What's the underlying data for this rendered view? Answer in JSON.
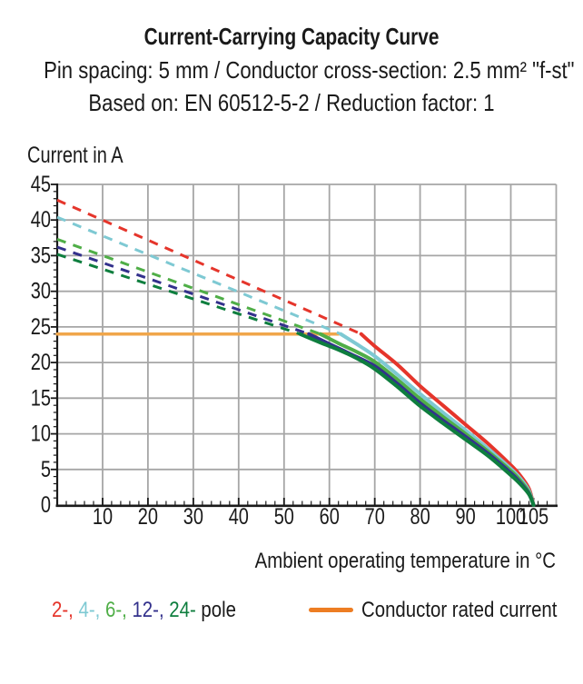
{
  "page": {
    "title": "Current-Carrying Capacity Curve",
    "subtitle1": "Pin spacing: 5 mm / Conductor cross-section: 2.5 mm² \"f-st\"",
    "subtitle2": "Based on: EN 60512-5-2 / Reduction factor: 1"
  },
  "axes": {
    "y_title": "Current in A",
    "x_title": "Ambient operating temperature in °C"
  },
  "legend": {
    "pole_items": [
      {
        "label": "2-,",
        "color": "#E5352B"
      },
      {
        "label": "4-,",
        "color": "#7EC9D3"
      },
      {
        "label": "6-,",
        "color": "#4FAE47"
      },
      {
        "label": "12-,",
        "color": "#33318C"
      },
      {
        "label": "24-",
        "color": "#0E7E3E"
      },
      {
        "label": "pole",
        "color": "#1A1A1A"
      }
    ],
    "rated_label": "Conductor rated current",
    "rated_swatch_color": "#ED7D23"
  },
  "chart_data": {
    "type": "line",
    "title": "Current-Carrying Capacity Curve",
    "xlabel": "Ambient operating temperature in °C",
    "ylabel": "Current in A",
    "xlim": [
      0,
      110
    ],
    "ylim": [
      0,
      45
    ],
    "grid": true,
    "x_gridline_step": 10,
    "y_gridline_step": 5,
    "x_tick_labels": [
      10,
      20,
      30,
      40,
      50,
      60,
      70,
      80,
      90,
      100,
      105
    ],
    "y_tick_labels": [
      0,
      5,
      10,
      15,
      20,
      25,
      30,
      35,
      40,
      45
    ],
    "axis_color": "#1A1A1A",
    "grid_color": "#A6A6A6",
    "rated_current_line": {
      "value": 24,
      "t_start": 0,
      "t_end": 62,
      "color": "#F0A64A",
      "label": "Conductor rated current"
    },
    "series": [
      {
        "name": "2-pole",
        "poles": 2,
        "color": "#E5352B",
        "dashed_points": [
          [
            0,
            42.8
          ],
          [
            67,
            24
          ]
        ],
        "solid_points": [
          [
            67,
            24
          ],
          [
            70,
            22.3
          ],
          [
            75,
            19.7
          ],
          [
            80,
            16.7
          ],
          [
            85,
            14.0
          ],
          [
            90,
            11.3
          ],
          [
            95,
            8.6
          ],
          [
            100,
            5.6
          ],
          [
            102,
            4.2
          ],
          [
            104,
            2.3
          ],
          [
            105,
            0
          ]
        ]
      },
      {
        "name": "4-pole",
        "poles": 4,
        "color": "#7EC9D3",
        "dashed_points": [
          [
            0,
            40.4
          ],
          [
            62.5,
            24
          ]
        ],
        "solid_points": [
          [
            62.5,
            24
          ],
          [
            66,
            22.6
          ],
          [
            70,
            20.9
          ],
          [
            75,
            18.3
          ],
          [
            80,
            15.6
          ],
          [
            85,
            13.0
          ],
          [
            90,
            10.5
          ],
          [
            95,
            7.9
          ],
          [
            100,
            5.1
          ],
          [
            102,
            3.8
          ],
          [
            104,
            2.0
          ],
          [
            105,
            0
          ]
        ]
      },
      {
        "name": "6-pole",
        "poles": 6,
        "color": "#4FAE47",
        "dashed_points": [
          [
            0,
            37.3
          ],
          [
            58,
            24
          ]
        ],
        "solid_points": [
          [
            58,
            24
          ],
          [
            62,
            22.7
          ],
          [
            66,
            21.5
          ],
          [
            70,
            20.1
          ],
          [
            75,
            17.6
          ],
          [
            80,
            14.9
          ],
          [
            85,
            12.4
          ],
          [
            90,
            10.0
          ],
          [
            95,
            7.5
          ],
          [
            100,
            4.8
          ],
          [
            102,
            3.5
          ],
          [
            104,
            1.8
          ],
          [
            105,
            0
          ]
        ]
      },
      {
        "name": "12-pole",
        "poles": 12,
        "color": "#33318C",
        "dashed_points": [
          [
            0,
            36.2
          ],
          [
            55.5,
            24
          ]
        ],
        "solid_points": [
          [
            55.5,
            24
          ],
          [
            60,
            22.6
          ],
          [
            65,
            21.1
          ],
          [
            70,
            19.5
          ],
          [
            75,
            17.0
          ],
          [
            80,
            14.3
          ],
          [
            85,
            11.9
          ],
          [
            90,
            9.6
          ],
          [
            95,
            7.2
          ],
          [
            100,
            4.5
          ],
          [
            102,
            3.2
          ],
          [
            104,
            1.6
          ],
          [
            105,
            0
          ]
        ]
      },
      {
        "name": "24-pole",
        "poles": 24,
        "color": "#0E7E3E",
        "dashed_points": [
          [
            0,
            35.2
          ],
          [
            53.5,
            24
          ]
        ],
        "solid_points": [
          [
            53.5,
            24
          ],
          [
            58,
            22.8
          ],
          [
            62,
            21.8
          ],
          [
            66,
            20.6
          ],
          [
            70,
            19.1
          ],
          [
            75,
            16.6
          ],
          [
            80,
            13.9
          ],
          [
            85,
            11.5
          ],
          [
            90,
            9.2
          ],
          [
            95,
            6.9
          ],
          [
            100,
            4.2
          ],
          [
            102,
            3.0
          ],
          [
            104,
            1.5
          ],
          [
            105,
            0
          ]
        ]
      }
    ]
  }
}
